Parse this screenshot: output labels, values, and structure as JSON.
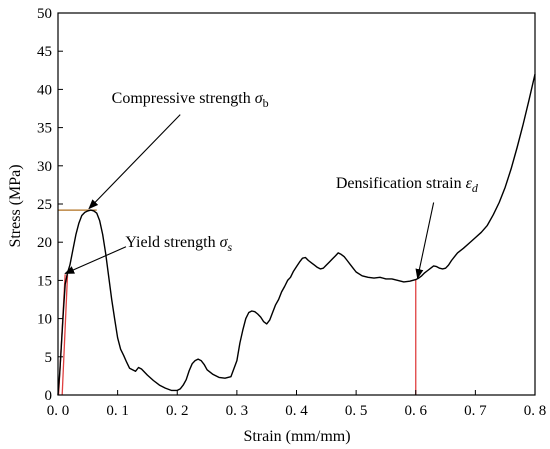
{
  "chart_data": {
    "type": "line",
    "title": "",
    "xlabel": "Strain (mm/mm)",
    "ylabel": "Stress (MPa)",
    "xlim": [
      0.0,
      0.8
    ],
    "ylim": [
      0,
      50
    ],
    "xticks": [
      0.0,
      0.1,
      0.2,
      0.3,
      0.4,
      0.5,
      0.6,
      0.7,
      0.8
    ],
    "xtick_labels": [
      "0. 0",
      "0. 1",
      "0. 2",
      "0. 3",
      "0. 4",
      "0. 5",
      "0. 6",
      "0. 7",
      "0. 8"
    ],
    "yticks": [
      0,
      5,
      10,
      15,
      20,
      25,
      30,
      35,
      40,
      45,
      50
    ],
    "ytick_labels": [
      "0",
      "5",
      "10",
      "15",
      "20",
      "25",
      "30",
      "35",
      "40",
      "45",
      "50"
    ],
    "grid": false,
    "legend": "none",
    "series": [
      {
        "color": "#000000",
        "points": [
          [
            0.0,
            0
          ],
          [
            0.003,
            3
          ],
          [
            0.006,
            7
          ],
          [
            0.009,
            11
          ],
          [
            0.012,
            14.5
          ],
          [
            0.016,
            16
          ],
          [
            0.02,
            17
          ],
          [
            0.025,
            19
          ],
          [
            0.03,
            21
          ],
          [
            0.035,
            22.5
          ],
          [
            0.04,
            23.5
          ],
          [
            0.045,
            23.9
          ],
          [
            0.05,
            24.1
          ],
          [
            0.055,
            24.2
          ],
          [
            0.06,
            24.1
          ],
          [
            0.065,
            23.8
          ],
          [
            0.07,
            22.8
          ],
          [
            0.075,
            21
          ],
          [
            0.08,
            18.5
          ],
          [
            0.085,
            15.5
          ],
          [
            0.09,
            12.5
          ],
          [
            0.095,
            10
          ],
          [
            0.1,
            7.5
          ],
          [
            0.105,
            6
          ],
          [
            0.11,
            5.2
          ],
          [
            0.115,
            4.3
          ],
          [
            0.12,
            3.5
          ],
          [
            0.125,
            3.3
          ],
          [
            0.13,
            3.1
          ],
          [
            0.135,
            3.6
          ],
          [
            0.14,
            3.4
          ],
          [
            0.15,
            2.6
          ],
          [
            0.16,
            1.9
          ],
          [
            0.17,
            1.3
          ],
          [
            0.18,
            0.9
          ],
          [
            0.19,
            0.6
          ],
          [
            0.2,
            0.6
          ],
          [
            0.205,
            0.8
          ],
          [
            0.21,
            1.3
          ],
          [
            0.215,
            2
          ],
          [
            0.22,
            3.2
          ],
          [
            0.225,
            4.1
          ],
          [
            0.23,
            4.5
          ],
          [
            0.235,
            4.7
          ],
          [
            0.24,
            4.5
          ],
          [
            0.245,
            4
          ],
          [
            0.25,
            3.3
          ],
          [
            0.26,
            2.7
          ],
          [
            0.27,
            2.3
          ],
          [
            0.28,
            2.2
          ],
          [
            0.29,
            2.4
          ],
          [
            0.3,
            4.5
          ],
          [
            0.305,
            6.8
          ],
          [
            0.31,
            8.5
          ],
          [
            0.315,
            10
          ],
          [
            0.32,
            10.8
          ],
          [
            0.325,
            11
          ],
          [
            0.33,
            10.9
          ],
          [
            0.335,
            10.6
          ],
          [
            0.34,
            10.2
          ],
          [
            0.345,
            9.6
          ],
          [
            0.35,
            9.3
          ],
          [
            0.355,
            9.8
          ],
          [
            0.36,
            10.8
          ],
          [
            0.365,
            11.8
          ],
          [
            0.37,
            12.5
          ],
          [
            0.375,
            13.5
          ],
          [
            0.38,
            14.2
          ],
          [
            0.385,
            15
          ],
          [
            0.39,
            15.4
          ],
          [
            0.395,
            16.2
          ],
          [
            0.4,
            16.8
          ],
          [
            0.405,
            17.4
          ],
          [
            0.41,
            17.9
          ],
          [
            0.415,
            18
          ],
          [
            0.42,
            17.6
          ],
          [
            0.425,
            17.3
          ],
          [
            0.43,
            17
          ],
          [
            0.435,
            16.7
          ],
          [
            0.44,
            16.5
          ],
          [
            0.445,
            16.6
          ],
          [
            0.45,
            17
          ],
          [
            0.455,
            17.4
          ],
          [
            0.46,
            17.8
          ],
          [
            0.465,
            18.2
          ],
          [
            0.47,
            18.6
          ],
          [
            0.475,
            18.4
          ],
          [
            0.48,
            18.1
          ],
          [
            0.485,
            17.6
          ],
          [
            0.49,
            17.1
          ],
          [
            0.495,
            16.6
          ],
          [
            0.5,
            16.1
          ],
          [
            0.51,
            15.6
          ],
          [
            0.52,
            15.4
          ],
          [
            0.53,
            15.3
          ],
          [
            0.54,
            15.4
          ],
          [
            0.55,
            15.2
          ],
          [
            0.56,
            15.2
          ],
          [
            0.57,
            15
          ],
          [
            0.58,
            14.8
          ],
          [
            0.59,
            14.9
          ],
          [
            0.6,
            15.1
          ],
          [
            0.605,
            15.3
          ],
          [
            0.61,
            15.6
          ],
          [
            0.615,
            16
          ],
          [
            0.62,
            16.3
          ],
          [
            0.625,
            16.6
          ],
          [
            0.63,
            16.9
          ],
          [
            0.635,
            16.8
          ],
          [
            0.64,
            16.6
          ],
          [
            0.645,
            16.5
          ],
          [
            0.65,
            16.6
          ],
          [
            0.655,
            17
          ],
          [
            0.66,
            17.6
          ],
          [
            0.665,
            18.1
          ],
          [
            0.67,
            18.6
          ],
          [
            0.68,
            19.2
          ],
          [
            0.69,
            19.9
          ],
          [
            0.7,
            20.6
          ],
          [
            0.71,
            21.3
          ],
          [
            0.72,
            22.2
          ],
          [
            0.73,
            23.6
          ],
          [
            0.74,
            25.2
          ],
          [
            0.75,
            27.2
          ],
          [
            0.76,
            29.6
          ],
          [
            0.77,
            32.4
          ],
          [
            0.78,
            35.4
          ],
          [
            0.79,
            38.6
          ],
          [
            0.8,
            42
          ]
        ]
      }
    ],
    "reference_lines": [
      {
        "name": "yield-line",
        "color": "#e04040",
        "from": [
          0.001,
          0
        ],
        "to": [
          0.012,
          15.8
        ]
      },
      {
        "name": "yield-line-2",
        "color": "#e04040",
        "from": [
          0.007,
          0
        ],
        "to": [
          0.016,
          15.8
        ]
      },
      {
        "name": "densification-vertical-line",
        "color": "#e04040",
        "from": [
          0.6,
          0
        ],
        "to": [
          0.6,
          15.1
        ]
      },
      {
        "name": "compressive-strength-level-line",
        "color": "#b07020",
        "from": [
          0.0,
          24.2
        ],
        "to": [
          0.065,
          24.2
        ]
      }
    ],
    "annotations": [
      {
        "key": "compressive",
        "text": "Compressive strength ",
        "symbol": "σ",
        "subscript": "b",
        "text_at": [
          0.09,
          38.2
        ],
        "arrow_from": [
          0.205,
          36.7
        ],
        "arrow_to": [
          0.052,
          24.4
        ]
      },
      {
        "key": "yield",
        "text": "Yield strength ",
        "symbol": "σ",
        "subscript": "s",
        "text_at": [
          0.113,
          19.4
        ],
        "arrow_from": [
          0.114,
          19.4
        ],
        "arrow_to": [
          0.012,
          15.9
        ]
      },
      {
        "key": "densification",
        "text": "Densification strain ",
        "symbol": "ε",
        "subscript": "d",
        "text_at": [
          0.466,
          27.1
        ],
        "arrow_from": [
          0.63,
          25.2
        ],
        "arrow_to": [
          0.603,
          15.3
        ]
      }
    ]
  }
}
